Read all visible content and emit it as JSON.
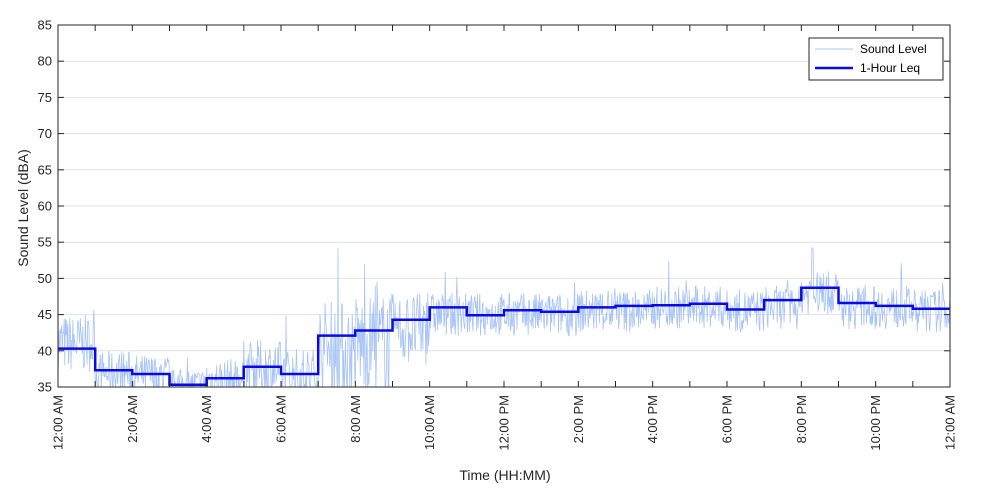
{
  "chart_data": {
    "type": "line",
    "title": "",
    "xlabel": "Time (HH:MM)",
    "ylabel": "Sound Level (dBA)",
    "ylim": [
      35,
      85
    ],
    "yticks": [
      35,
      40,
      45,
      50,
      55,
      60,
      65,
      70,
      75,
      80,
      85
    ],
    "xlim_hours": [
      0,
      24
    ],
    "xticks": [
      {
        "hour": 0,
        "label": "12:00 AM"
      },
      {
        "hour": 2,
        "label": "2:00 AM"
      },
      {
        "hour": 4,
        "label": "4:00 AM"
      },
      {
        "hour": 6,
        "label": "6:00 AM"
      },
      {
        "hour": 8,
        "label": "8:00 AM"
      },
      {
        "hour": 10,
        "label": "10:00 AM"
      },
      {
        "hour": 12,
        "label": "12:00 PM"
      },
      {
        "hour": 14,
        "label": "2:00 PM"
      },
      {
        "hour": 16,
        "label": "4:00 PM"
      },
      {
        "hour": 18,
        "label": "6:00 PM"
      },
      {
        "hour": 20,
        "label": "8:00 PM"
      },
      {
        "hour": 22,
        "label": "10:00 PM"
      },
      {
        "hour": 24,
        "label": "12:00 AM"
      }
    ],
    "grid": "horizontal",
    "legend_position": "top-right",
    "series": [
      {
        "name": "Sound Level",
        "color": "#a9c4f5",
        "style": "thin",
        "hourly_mean": [
          41,
          37,
          36.5,
          35.5,
          36,
          37.5,
          36.5,
          40,
          41,
          43,
          45,
          45,
          45,
          45,
          45.5,
          45.5,
          46,
          46,
          45.5,
          46,
          48,
          46,
          46,
          45.5
        ],
        "hourly_range": [
          4,
          3,
          3,
          2,
          3,
          4,
          4,
          7,
          7,
          5,
          3,
          3,
          3,
          3,
          3,
          3,
          3,
          3,
          3,
          3,
          3,
          3,
          3,
          3
        ],
        "peak": {
          "hour": 20.3,
          "value": 54.2
        }
      },
      {
        "name": "1-Hour Leq",
        "color": "#0a0ae6",
        "style": "step",
        "hours": [
          0,
          1,
          2,
          3,
          4,
          5,
          6,
          7,
          8,
          9,
          10,
          11,
          12,
          13,
          14,
          15,
          16,
          17,
          18,
          19,
          20,
          21,
          22,
          23
        ],
        "values": [
          40.3,
          37.3,
          36.8,
          35.3,
          36.2,
          37.8,
          36.8,
          42.1,
          42.8,
          44.3,
          46.0,
          44.9,
          45.6,
          45.4,
          46.0,
          46.2,
          46.3,
          46.5,
          45.7,
          47.0,
          48.7,
          46.6,
          46.2,
          45.8
        ]
      }
    ]
  }
}
